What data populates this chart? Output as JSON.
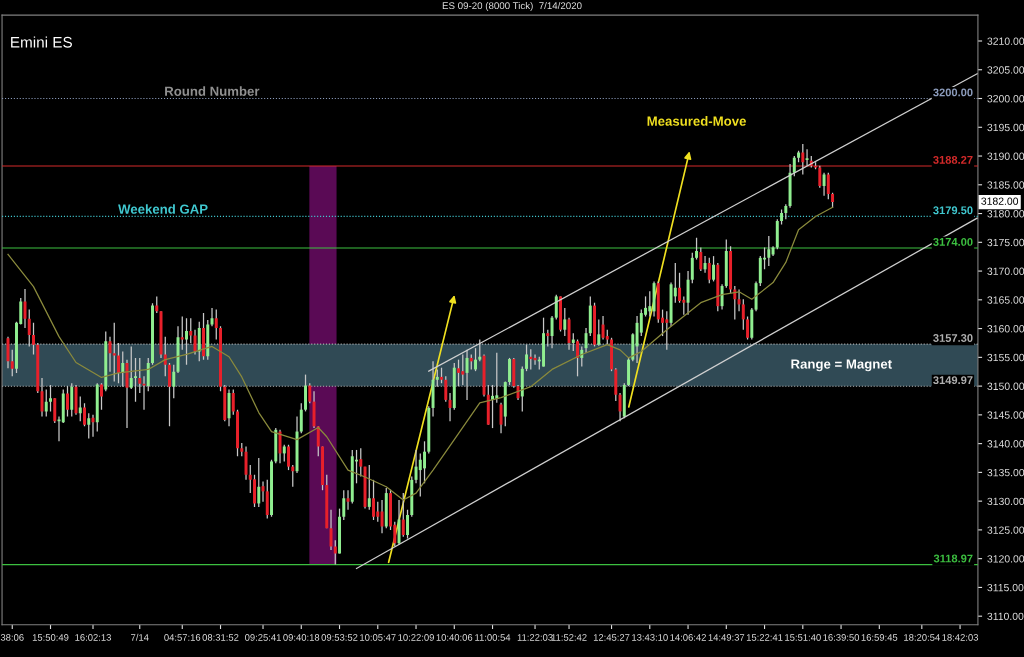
{
  "chart_data": {
    "type": "candlestick",
    "title": "ES 09-20 (8000 Tick)  7/14/2020",
    "subtitle": "Emini ES",
    "categories": [
      null,
      "38:06",
      null,
      null,
      null,
      null,
      null,
      null,
      null,
      null,
      "15:50:49",
      null,
      null,
      null,
      null,
      null,
      null,
      null,
      null,
      null,
      "16:02:13",
      null,
      null,
      null,
      null,
      null,
      null,
      null,
      null,
      null,
      null,
      "7/14",
      null,
      null,
      null,
      null,
      null,
      null,
      null,
      null,
      null,
      "04:57:16",
      null,
      null,
      null,
      null,
      null,
      null,
      null,
      null,
      "08:31:52",
      null,
      null,
      null,
      null,
      null,
      null,
      null,
      null,
      null,
      "09:25:41",
      null,
      null,
      null,
      null,
      null,
      null,
      null,
      null,
      "09:40:18",
      null,
      null,
      null,
      null,
      null,
      null,
      null,
      null,
      "09:53:52",
      null,
      null,
      null,
      null,
      null,
      null,
      null,
      null,
      "10:05:47",
      null,
      null,
      null,
      null,
      null,
      null,
      null,
      null,
      "10:22:09",
      null,
      null,
      null,
      null,
      null,
      null,
      null,
      null,
      "10:40:06",
      null,
      null,
      null,
      null,
      null,
      null,
      null,
      null,
      "11:00:54",
      null,
      null,
      null,
      null,
      null,
      null,
      null,
      null,
      null,
      "11:22:03",
      null,
      null,
      null,
      null,
      null,
      null,
      null,
      "11:52:42",
      null,
      null,
      null,
      null,
      null,
      null,
      null,
      null,
      null,
      "12:45:27",
      null,
      null,
      null,
      null,
      null,
      null,
      null,
      null,
      "13:43:10",
      null,
      null,
      null,
      null,
      null,
      null,
      null,
      null,
      "14:06:42",
      null,
      null,
      null,
      null,
      null,
      null,
      null,
      null,
      "14:49:37",
      null,
      null,
      null,
      null,
      null,
      null,
      null,
      null,
      "15:22:41",
      null,
      null,
      null,
      null,
      null,
      null,
      null,
      null,
      "15:51:40",
      null,
      null,
      null,
      null,
      null,
      null,
      null,
      null,
      "16:39:50",
      null,
      null,
      null,
      null,
      null,
      null,
      null,
      null,
      "16:59:45",
      null,
      null,
      null,
      null,
      null,
      null,
      null,
      null,
      null,
      "18:20:54",
      null,
      null,
      null,
      null,
      null,
      null,
      null,
      null,
      "18:42:03",
      null,
      null,
      null,
      null
    ],
    "colors": [
      "#e8202a",
      "#e8202a",
      "#90ee90",
      "#90ee90",
      "#e8202a",
      "#e8202a",
      "#e8202a",
      "#e8202a",
      "#e8202a",
      "#90ee90",
      "#90ee90",
      "#e8202a",
      "#90ee90",
      "#90ee90",
      "#e8202a",
      "#90ee90",
      "#e8202a",
      "#90ee90",
      "#e8202a",
      "#90ee90",
      "#e8202a",
      "#90ee90",
      "#e8202a",
      "#90ee90",
      "#e8202a",
      "#e8202a",
      "#e8202a",
      "#90ee90",
      "#e8202a",
      "#90ee90",
      "#90ee90",
      "#e8202a",
      "#e8202a",
      "#90ee90",
      "#90ee90",
      "#e8202a",
      "#e8202a",
      "#e8202a",
      "#e8202a",
      "#90ee90",
      "#90ee90",
      "#e8202a",
      "#90ee90",
      "#e8202a",
      "#e8202a",
      "#90ee90",
      "#e8202a",
      "#90ee90",
      "#90ee90",
      "#e8202a",
      "#e8202a",
      "#e8202a",
      "#90ee90",
      "#e8202a",
      "#e8202a",
      "#e8202a",
      "#e8202a",
      "#e8202a",
      "#e8202a",
      "#90ee90",
      "#e8202a",
      "#e8202a",
      "#90ee90",
      "#90ee90",
      "#e8202a",
      "#90ee90",
      "#e8202a",
      "#e8202a",
      "#90ee90",
      "#90ee90",
      "#90ee90",
      "#e8202a",
      "#e8202a",
      "#e8202a",
      "#e8202a",
      "#e8202a",
      "#e8202a",
      "#e8202a",
      "#90ee90",
      "#90ee90",
      "#e8202a",
      "#90ee90",
      "#90ee90",
      "#e8202a",
      "#e8202a",
      "#90ee90",
      "#e8202a",
      "#e8202a",
      "#e8202a",
      "#90ee90",
      "#e8202a",
      "#e8202a",
      "#90ee90",
      "#e8202a",
      "#90ee90",
      "#90ee90",
      "#90ee90",
      "#90ee90",
      "#90ee90",
      "#90ee90",
      "#90ee90",
      "#90ee90",
      "#e8202a",
      "#e8202a",
      "#e8202a",
      "#90ee90",
      "#e8202a",
      "#e8202a",
      "#90ee90",
      "#e8202a",
      "#90ee90",
      "#90ee90",
      "#e8202a",
      "#e8202a",
      "#90ee90",
      "#90ee90",
      "#e8202a",
      "#90ee90",
      "#90ee90",
      "#e8202a",
      "#e8202a",
      "#90ee90",
      "#90ee90",
      "#e8202a",
      "#e8202a",
      "#90ee90",
      "#90ee90",
      "#e8202a",
      "#90ee90",
      "#90ee90",
      "#e8202a",
      "#90ee90",
      "#e8202a",
      "#90ee90",
      "#e8202a",
      "#90ee90",
      "#90ee90",
      "#90ee90",
      "#e8202a",
      "#90ee90",
      "#e8202a",
      "#e8202a",
      "#e8202a",
      "#e8202a",
      "#e8202a",
      "#90ee90",
      "#90ee90",
      "#90ee90",
      "#90ee90",
      "#90ee90",
      "#90ee90",
      "#90ee90",
      "#90ee90",
      "#e8202a",
      "#e8202a",
      "#e8202a",
      "#90ee90",
      "#90ee90",
      "#e8202a",
      "#e8202a",
      "#90ee90",
      "#90ee90",
      "#90ee90",
      "#e8202a",
      "#90ee90",
      "#e8202a",
      "#90ee90",
      "#e8202a",
      "#90ee90",
      "#90ee90",
      "#e8202a",
      "#e8202a",
      "#e8202a",
      "#e8202a",
      "#e8202a",
      "#90ee90",
      "#90ee90",
      "#90ee90",
      "#90ee90",
      "#90ee90",
      "#90ee90",
      "#90ee90",
      "#90ee90",
      "#90ee90",
      "#90ee90",
      "#90ee90",
      "#90ee90",
      "#e8202a",
      "#90ee90",
      "#e8202a",
      "#e8202a",
      "#e8202a",
      "#90ee90",
      "#e8202a",
      "#e8202a",
      null,
      null,
      null,
      null,
      null,
      null,
      null,
      null,
      null,
      null,
      null,
      null,
      null,
      null,
      null,
      null,
      null,
      null,
      null,
      null,
      null,
      null,
      null,
      null,
      null,
      null,
      null,
      null,
      null,
      null,
      null,
      null,
      null,
      null
    ],
    "ohlc": [
      [
        3158.3,
        3158.6,
        3153.1,
        3154.3
      ],
      [
        3154.3,
        3156.3,
        3151.7,
        3153.0
      ],
      [
        3153.0,
        3161.2,
        3152.3,
        3161.0
      ],
      [
        3160.8,
        3165.3,
        3160.7,
        3164.7
      ],
      [
        3164.7,
        3166.9,
        3160.1,
        3161.7
      ],
      [
        3161.7,
        3163.3,
        3156.9,
        3158.9
      ],
      [
        3158.9,
        3161.0,
        3155.5,
        3157.2
      ],
      [
        3157.2,
        3157.5,
        3148.8,
        3149.1
      ],
      [
        3149.1,
        3151.4,
        3144.7,
        3145.6
      ],
      [
        3145.6,
        3149.4,
        3144.7,
        3147.3
      ],
      [
        3147.3,
        3150.2,
        3145.6,
        3147.9
      ],
      [
        3147.9,
        3147.9,
        3143.6,
        3143.9
      ],
      [
        3143.9,
        3144.7,
        3140.4,
        3144.2
      ],
      [
        3143.7,
        3149.4,
        3143.6,
        3148.7
      ],
      [
        3148.7,
        3150.0,
        3144.7,
        3145.9
      ],
      [
        3145.9,
        3150.5,
        3144.7,
        3149.9
      ],
      [
        3149.9,
        3150.2,
        3145.0,
        3145.3
      ],
      [
        3145.3,
        3148.2,
        3143.9,
        3146.3
      ],
      [
        3146.3,
        3147.0,
        3143.0,
        3143.3
      ],
      [
        3143.3,
        3145.3,
        3140.9,
        3144.4
      ],
      [
        3144.5,
        3145.0,
        3141.2,
        3143.7
      ],
      [
        3143.7,
        3150.5,
        3142.1,
        3150.3
      ],
      [
        3150.3,
        3150.5,
        3145.9,
        3148.2
      ],
      [
        3149.4,
        3159.5,
        3149.1,
        3157.8
      ],
      [
        3157.8,
        3158.6,
        3152.5,
        3155.7
      ],
      [
        3155.7,
        3161.0,
        3150.8,
        3155.3
      ],
      [
        3155.3,
        3157.5,
        3150.5,
        3152.3
      ],
      [
        3152.3,
        3156.0,
        3149.9,
        3154.0
      ],
      [
        3154.0,
        3154.6,
        3142.7,
        3149.7
      ],
      [
        3149.7,
        3156.9,
        3149.5,
        3151.4
      ],
      [
        3151.4,
        3154.9,
        3147.3,
        3151.7
      ],
      [
        3151.4,
        3154.9,
        3148.8,
        3150.4
      ],
      [
        3150.4,
        3151.7,
        3145.9,
        3150.1
      ],
      [
        3150.0,
        3154.9,
        3149.1,
        3154.0
      ],
      [
        3154.0,
        3164.4,
        3153.7,
        3164.0
      ],
      [
        3164.0,
        3165.6,
        3162.7,
        3163.0
      ],
      [
        3163.0,
        3163.0,
        3154.9,
        3155.5
      ],
      [
        3155.5,
        3158.6,
        3151.7,
        3153.7
      ],
      [
        3153.7,
        3154.0,
        3143.0,
        3149.9
      ],
      [
        3149.9,
        3153.7,
        3147.9,
        3152.5
      ],
      [
        3152.5,
        3160.4,
        3152.3,
        3158.5
      ],
      [
        3158.5,
        3162.1,
        3156.3,
        3158.1
      ],
      [
        3158.1,
        3161.8,
        3153.7,
        3159.6
      ],
      [
        3159.6,
        3161.8,
        3157.5,
        3158.8
      ],
      [
        3158.8,
        3159.8,
        3155.5,
        3156.0
      ],
      [
        3156.0,
        3161.2,
        3154.3,
        3160.1
      ],
      [
        3160.1,
        3162.7,
        3154.6,
        3155.2
      ],
      [
        3155.2,
        3161.5,
        3154.6,
        3160.7
      ],
      [
        3160.7,
        3163.6,
        3160.4,
        3161.8
      ],
      [
        3161.8,
        3163.3,
        3158.1,
        3160.1
      ],
      [
        3160.1,
        3160.4,
        3149.1,
        3149.9
      ],
      [
        3149.9,
        3150.2,
        3143.9,
        3144.1
      ],
      [
        3144.4,
        3149.4,
        3143.0,
        3148.8
      ],
      [
        3148.8,
        3149.4,
        3145.0,
        3145.6
      ],
      [
        3145.6,
        3145.9,
        3137.8,
        3139.2
      ],
      [
        3139.2,
        3140.1,
        3137.8,
        3138.6
      ],
      [
        3138.6,
        3139.5,
        3133.7,
        3134.6
      ],
      [
        3134.6,
        3136.3,
        3131.4,
        3133.7
      ],
      [
        3133.8,
        3134.6,
        3129.0,
        3129.6
      ],
      [
        3129.6,
        3137.5,
        3129.0,
        3132.5
      ],
      [
        3132.6,
        3133.4,
        3129.9,
        3131.7
      ],
      [
        3131.7,
        3133.7,
        3127.0,
        3127.6
      ],
      [
        3127.6,
        3137.2,
        3127.3,
        3136.9
      ],
      [
        3136.9,
        3142.7,
        3136.6,
        3142.4
      ],
      [
        3142.1,
        3142.4,
        3136.6,
        3138.3
      ],
      [
        3138.3,
        3139.8,
        3136.9,
        3139.5
      ],
      [
        3139.5,
        3139.8,
        3135.4,
        3136.0
      ],
      [
        3136.0,
        3136.3,
        3132.5,
        3135.2
      ],
      [
        3135.2,
        3144.7,
        3134.9,
        3142.1
      ],
      [
        3142.1,
        3147.0,
        3141.8,
        3145.9
      ],
      [
        3145.9,
        3152.0,
        3145.6,
        3150.1
      ],
      [
        3150.1,
        3150.5,
        3147.0,
        3147.3
      ],
      [
        3147.3,
        3149.1,
        3142.7,
        3143.0
      ],
      [
        3143.0,
        3143.0,
        3137.8,
        3139.5
      ],
      [
        3139.5,
        3139.5,
        3131.9,
        3132.8
      ],
      [
        3132.8,
        3134.6,
        3125.3,
        3125.3
      ],
      [
        3125.3,
        3128.5,
        3121.5,
        3122.1
      ],
      [
        3122.1,
        3123.2,
        3119.0,
        3120.9
      ],
      [
        3120.9,
        3128.7,
        3120.9,
        3127.3
      ],
      [
        3127.3,
        3131.9,
        3126.7,
        3130.5
      ],
      [
        3130.5,
        3131.9,
        3128.5,
        3129.9
      ],
      [
        3129.9,
        3138.9,
        3129.6,
        3137.8
      ],
      [
        3136.9,
        3138.9,
        3133.1,
        3137.2
      ],
      [
        3137.3,
        3139.2,
        3134.3,
        3136.0
      ],
      [
        3136.0,
        3136.0,
        3128.7,
        3129.0
      ],
      [
        3129.0,
        3136.3,
        3128.5,
        3130.5
      ],
      [
        3130.5,
        3133.7,
        3126.7,
        3127.3
      ],
      [
        3128.2,
        3129.9,
        3126.4,
        3127.3
      ],
      [
        3128.2,
        3130.2,
        3124.4,
        3125.6
      ],
      [
        3125.6,
        3132.3,
        3125.3,
        3131.4
      ],
      [
        3131.4,
        3132.0,
        3125.0,
        3125.6
      ],
      [
        3125.9,
        3126.4,
        3122.1,
        3122.7
      ],
      [
        3122.7,
        3130.2,
        3122.4,
        3126.8
      ],
      [
        3126.8,
        3131.4,
        3123.8,
        3124.1
      ],
      [
        3124.1,
        3128.5,
        3123.5,
        3127.6
      ],
      [
        3127.6,
        3134.3,
        3127.3,
        3133.7
      ],
      [
        3133.7,
        3138.9,
        3133.1,
        3136.0
      ],
      [
        3135.4,
        3138.3,
        3130.8,
        3137.2
      ],
      [
        3135.7,
        3140.4,
        3133.1,
        3138.6
      ],
      [
        3138.6,
        3146.5,
        3138.3,
        3146.2
      ],
      [
        3146.2,
        3154.3,
        3144.7,
        3151.1
      ],
      [
        3151.1,
        3152.9,
        3149.9,
        3151.6
      ],
      [
        3151.6,
        3153.2,
        3150.5,
        3151.1
      ],
      [
        3151.1,
        3151.7,
        3147.3,
        3147.6
      ],
      [
        3147.6,
        3148.8,
        3143.9,
        3146.2
      ],
      [
        3146.2,
        3154.0,
        3145.9,
        3153.2
      ],
      [
        3153.1,
        3154.6,
        3150.0,
        3152.3
      ],
      [
        3152.6,
        3155.5,
        3150.2,
        3152.0
      ],
      [
        3152.3,
        3156.3,
        3147.6,
        3154.9
      ],
      [
        3154.9,
        3155.5,
        3152.9,
        3154.3
      ],
      [
        3152.9,
        3156.6,
        3152.6,
        3154.6
      ],
      [
        3154.6,
        3158.1,
        3154.3,
        3155.1
      ],
      [
        3155.3,
        3155.5,
        3148.2,
        3148.5
      ],
      [
        3148.5,
        3150.2,
        3143.3,
        3143.3
      ],
      [
        3147.6,
        3150.2,
        3142.7,
        3148.3
      ],
      [
        3147.8,
        3155.8,
        3147.1,
        3148.4
      ],
      [
        3146.8,
        3147.1,
        3141.8,
        3143.3
      ],
      [
        3144.7,
        3150.8,
        3143.0,
        3150.7
      ],
      [
        3150.7,
        3154.9,
        3150.2,
        3154.7
      ],
      [
        3154.7,
        3154.9,
        3149.7,
        3150.0
      ],
      [
        3150.0,
        3150.2,
        3147.6,
        3147.9
      ],
      [
        3148.2,
        3153.4,
        3145.6,
        3153.0
      ],
      [
        3153.0,
        3157.2,
        3152.6,
        3155.5
      ],
      [
        3155.1,
        3156.4,
        3152.9,
        3154.7
      ],
      [
        3154.9,
        3155.5,
        3153.7,
        3154.5
      ],
      [
        3154.3,
        3155.1,
        3152.9,
        3154.6
      ],
      [
        3153.4,
        3161.9,
        3153.4,
        3159.2
      ],
      [
        3159.2,
        3159.8,
        3156.9,
        3158.7
      ],
      [
        3158.7,
        3162.2,
        3156.6,
        3161.9
      ],
      [
        3161.9,
        3165.9,
        3161.6,
        3165.6
      ],
      [
        3165.6,
        3165.6,
        3159.5,
        3159.8
      ],
      [
        3159.8,
        3163.6,
        3158.7,
        3161.6
      ],
      [
        3161.6,
        3161.9,
        3156.3,
        3157.5
      ],
      [
        3157.5,
        3159.2,
        3156.1,
        3158.1
      ],
      [
        3157.8,
        3158.1,
        3151.7,
        3154.9
      ],
      [
        3154.9,
        3156.9,
        3153.4,
        3156.3
      ],
      [
        3156.6,
        3160.1,
        3155.8,
        3159.2
      ],
      [
        3159.2,
        3165.6,
        3158.7,
        3164.0
      ],
      [
        3164.0,
        3164.5,
        3156.9,
        3157.2
      ],
      [
        3157.2,
        3161.6,
        3157.0,
        3159.0
      ],
      [
        3160.7,
        3162.2,
        3158.1,
        3158.4
      ],
      [
        3158.7,
        3159.8,
        3157.2,
        3158.1
      ],
      [
        3158.1,
        3158.4,
        3152.6,
        3152.9
      ],
      [
        3152.9,
        3153.1,
        3147.4,
        3148.5
      ],
      [
        3148.5,
        3148.8,
        3143.9,
        3145.6
      ],
      [
        3144.7,
        3150.5,
        3144.4,
        3150.2
      ],
      [
        3150.2,
        3154.9,
        3150.0,
        3154.6
      ],
      [
        3154.6,
        3159.2,
        3154.3,
        3159.0
      ],
      [
        3156.9,
        3162.2,
        3154.0,
        3161.0
      ],
      [
        3159.3,
        3163.3,
        3158.7,
        3162.7
      ],
      [
        3162.4,
        3165.6,
        3162.1,
        3163.6
      ],
      [
        3163.0,
        3166.5,
        3162.1,
        3163.9
      ],
      [
        3163.0,
        3168.2,
        3162.1,
        3167.9
      ],
      [
        3167.9,
        3168.2,
        3161.0,
        3161.6
      ],
      [
        3161.9,
        3163.3,
        3158.7,
        3161.0
      ],
      [
        3161.6,
        3163.0,
        3156.3,
        3161.0
      ],
      [
        3161.0,
        3168.0,
        3160.4,
        3167.7
      ],
      [
        3165.6,
        3171.4,
        3164.5,
        3167.1
      ],
      [
        3167.1,
        3169.7,
        3164.5,
        3164.8
      ],
      [
        3165.0,
        3165.6,
        3162.4,
        3164.5
      ],
      [
        3164.5,
        3170.0,
        3162.4,
        3168.5
      ],
      [
        3168.5,
        3173.2,
        3167.9,
        3172.3
      ],
      [
        3172.3,
        3175.8,
        3172.0,
        3173.5
      ],
      [
        3173.3,
        3174.1,
        3170.0,
        3170.3
      ],
      [
        3170.3,
        3172.6,
        3169.7,
        3171.4
      ],
      [
        3171.4,
        3172.3,
        3167.9,
        3168.5
      ],
      [
        3168.5,
        3172.6,
        3168.2,
        3171.1
      ],
      [
        3171.1,
        3171.4,
        3163.0,
        3163.9
      ],
      [
        3163.9,
        3167.7,
        3163.3,
        3167.4
      ],
      [
        3167.4,
        3175.5,
        3167.1,
        3173.5
      ],
      [
        3173.5,
        3174.3,
        3166.2,
        3166.8
      ],
      [
        3166.8,
        3167.4,
        3161.6,
        3165.1
      ],
      [
        3165.1,
        3166.8,
        3163.0,
        3164.2
      ],
      [
        3164.2,
        3165.1,
        3159.8,
        3161.6
      ],
      [
        3161.6,
        3162.1,
        3158.1,
        3158.4
      ],
      [
        3158.4,
        3163.6,
        3158.1,
        3163.3
      ],
      [
        3163.3,
        3168.2,
        3163.0,
        3167.9
      ],
      [
        3167.9,
        3172.6,
        3167.4,
        3172.3
      ],
      [
        3172.0,
        3174.1,
        3170.3,
        3172.3
      ],
      [
        3172.3,
        3176.1,
        3170.9,
        3173.8
      ],
      [
        3172.9,
        3174.3,
        3172.6,
        3174.1
      ],
      [
        3174.1,
        3179.0,
        3173.8,
        3178.7
      ],
      [
        3178.7,
        3180.7,
        3178.1,
        3180.1
      ],
      [
        3180.1,
        3181.6,
        3179.0,
        3181.3
      ],
      [
        3181.3,
        3188.6,
        3181.0,
        3187.1
      ],
      [
        3187.1,
        3190.0,
        3186.5,
        3189.7
      ],
      [
        3189.7,
        3190.9,
        3188.9,
        3190.6
      ],
      [
        3190.6,
        3192.1,
        3186.8,
        3188.9
      ],
      [
        3189.3,
        3191.2,
        3188.3,
        3189.6
      ],
      [
        3189.2,
        3190.0,
        3188.0,
        3188.3
      ],
      [
        3188.3,
        3188.9,
        3187.7,
        3188.0
      ],
      [
        3188.0,
        3188.3,
        3184.5,
        3184.8
      ],
      [
        3184.8,
        3187.1,
        3183.1,
        3186.8
      ],
      [
        3186.8,
        3187.1,
        3182.5,
        3183.4
      ],
      [
        3183.4,
        3183.6,
        3181.0,
        3182.0
      ],
      null,
      null,
      null,
      null,
      null,
      null,
      null,
      null,
      null,
      null,
      null,
      null,
      null,
      null,
      null,
      null,
      null,
      null,
      null,
      null,
      null,
      null,
      null,
      null,
      null,
      null,
      null,
      null,
      null,
      null,
      null,
      null,
      null,
      null
    ],
    "series": [
      {
        "type": "line",
        "color": "#8a8a3c",
        "values": [
          3172.9,
          null,
          null,
          null,
          null,
          null,
          3167.3,
          null,
          null,
          null,
          null,
          null,
          3158.6,
          null,
          null,
          null,
          3154.1,
          null,
          null,
          null,
          null,
          null,
          3151.5,
          null,
          null,
          null,
          3152.3,
          null,
          null,
          null,
          null,
          null,
          null,
          3152.9,
          null,
          null,
          null,
          3154.6,
          null,
          null,
          null,
          null,
          3155.5,
          null,
          null,
          null,
          null,
          null,
          3156.9,
          null,
          null,
          null,
          3155.1,
          null,
          null,
          3151.6,
          null,
          null,
          null,
          3145.4,
          null,
          null,
          3142.1,
          null,
          null,
          null,
          null,
          null,
          3140.7,
          null,
          null,
          null,
          null,
          3142.8,
          null,
          3141.2,
          null,
          null,
          null,
          null,
          3135.4,
          null,
          null,
          null,
          3134.2,
          null,
          null,
          null,
          null,
          3132.5,
          null,
          null,
          null,
          3130.2,
          null,
          null,
          3131.4,
          null,
          null,
          null,
          3135.4,
          null,
          null,
          null,
          null,
          3140.7,
          null,
          null,
          null,
          null,
          null,
          3147.1,
          null,
          null,
          null,
          null,
          3148.0,
          null,
          null,
          null,
          null,
          null,
          null,
          3149.9,
          null,
          null,
          null,
          null,
          3152.9,
          null,
          null,
          null,
          null,
          null,
          null,
          3155.5,
          null,
          null,
          null,
          null,
          null,
          3157.2,
          null,
          null,
          3156.3,
          null,
          3154.9,
          null,
          null,
          3156.0,
          null,
          null,
          null,
          null,
          null,
          3159.8,
          null,
          null,
          null,
          null,
          null,
          null,
          null,
          3164.5,
          null,
          null,
          null,
          null,
          3165.9,
          null,
          null,
          null,
          3166.4,
          null,
          null,
          3165.1,
          null,
          null,
          null,
          null,
          3168.0,
          null,
          null,
          3171.5,
          null,
          null,
          3177.2,
          null,
          null,
          null,
          3179.5,
          null,
          null,
          null,
          3181.1,
          null,
          null,
          null,
          null,
          null,
          null,
          null,
          null,
          null,
          null,
          null,
          null,
          null,
          null,
          null,
          null,
          null,
          null,
          null,
          null,
          null,
          null,
          null,
          null,
          null,
          null,
          null,
          null,
          null,
          null,
          null,
          null,
          null,
          null
        ]
      },
      {
        "type": "line",
        "color": "#d0d0d0",
        "values": [
          null,
          null,
          null,
          null,
          null,
          null,
          null,
          null,
          null,
          null,
          null,
          null,
          null,
          null,
          null,
          null,
          null,
          null,
          null,
          null,
          null,
          null,
          null,
          null,
          null,
          null,
          null,
          null,
          null,
          null,
          null,
          null,
          null,
          null,
          null,
          null,
          null,
          null,
          null,
          null,
          null,
          null,
          null,
          null,
          null,
          null,
          null,
          null,
          null,
          null,
          null,
          null,
          null,
          null,
          null,
          null,
          null,
          null,
          null,
          null,
          null,
          null,
          null,
          null,
          null,
          null,
          null,
          null,
          null,
          null,
          null,
          null,
          null,
          null,
          null,
          null,
          null,
          null,
          null,
          null,
          null,
          null,
          null,
          null,
          null,
          null,
          null,
          null,
          null,
          null,
          null,
          null,
          null,
          null,
          null,
          null,
          null,
          null,
          null,
          3152.6,
          null,
          null,
          null,
          null,
          null,
          null,
          null,
          null,
          null,
          null,
          null,
          null,
          null,
          null,
          null,
          null,
          null,
          null,
          null,
          null,
          null,
          null,
          null,
          null,
          null,
          null,
          null,
          null,
          null,
          null,
          null,
          null,
          null,
          null,
          null,
          null,
          null,
          null,
          null,
          null,
          null,
          null,
          null,
          null,
          null,
          null,
          null,
          null,
          null,
          null,
          null,
          null,
          null,
          null,
          null,
          null,
          null,
          null,
          null,
          null,
          null,
          null,
          null,
          null,
          null,
          null,
          null,
          null,
          null,
          null,
          null,
          null,
          null,
          null,
          null,
          null,
          null,
          null,
          null,
          null,
          null,
          null,
          null,
          null,
          null,
          null,
          null,
          null,
          null,
          null,
          null,
          null,
          null,
          null,
          null,
          null,
          null,
          null,
          null,
          null,
          null,
          null,
          null,
          null,
          null,
          null,
          null,
          null,
          null,
          null,
          null,
          null,
          null,
          null,
          null,
          null,
          null,
          null,
          null,
          null,
          null,
          null,
          null,
          null,
          null,
          null,
          null,
          null,
          3204.3
        ]
      },
      {
        "type": "line",
        "color": "#d0d0d0",
        "values": [
          null,
          null,
          null,
          null,
          null,
          null,
          null,
          null,
          null,
          null,
          null,
          null,
          null,
          null,
          null,
          null,
          null,
          null,
          null,
          null,
          null,
          null,
          null,
          null,
          null,
          null,
          null,
          null,
          null,
          null,
          null,
          null,
          null,
          null,
          null,
          null,
          null,
          null,
          null,
          null,
          null,
          null,
          null,
          null,
          null,
          null,
          null,
          null,
          null,
          null,
          null,
          null,
          null,
          null,
          null,
          null,
          null,
          null,
          null,
          null,
          null,
          null,
          null,
          null,
          null,
          null,
          null,
          null,
          null,
          null,
          null,
          null,
          null,
          null,
          null,
          null,
          null,
          null,
          null,
          null,
          null,
          null,
          3118.3,
          null,
          null,
          null,
          null,
          null,
          null,
          null,
          null,
          null,
          null,
          null,
          null,
          null,
          null,
          null,
          null,
          null,
          null,
          null,
          null,
          null,
          null,
          null,
          null,
          null,
          null,
          null,
          null,
          null,
          null,
          null,
          null,
          null,
          null,
          null,
          null,
          null,
          null,
          null,
          null,
          null,
          null,
          null,
          null,
          null,
          null,
          null,
          null,
          null,
          null,
          null,
          null,
          null,
          null,
          null,
          null,
          null,
          null,
          null,
          null,
          null,
          null,
          null,
          null,
          null,
          null,
          null,
          null,
          null,
          null,
          null,
          null,
          null,
          null,
          null,
          null,
          null,
          null,
          null,
          null,
          null,
          null,
          null,
          null,
          null,
          null,
          null,
          null,
          null,
          null,
          null,
          null,
          null,
          null,
          null,
          null,
          null,
          null,
          null,
          null,
          null,
          null,
          null,
          null,
          null,
          null,
          null,
          null,
          null,
          null,
          null,
          null,
          null,
          null,
          null,
          null,
          null,
          null,
          null,
          null,
          null,
          null,
          null,
          null,
          null,
          null,
          null,
          null,
          null,
          null,
          null,
          null,
          null,
          null,
          null,
          null,
          null,
          null,
          null,
          null,
          null,
          null,
          null,
          null,
          null,
          3179.2
        ]
      }
    ],
    "ylim": [
      3108.5,
      3214.5
    ],
    "yticks": [
      {
        "value": 3110,
        "label": "3110.00"
      },
      {
        "value": 3115,
        "label": "3115.00"
      },
      {
        "value": 3120,
        "label": "3120.00"
      },
      {
        "value": 3125,
        "label": "3125.00"
      },
      {
        "value": 3130,
        "label": "3130.00"
      },
      {
        "value": 3135,
        "label": "3135.00"
      },
      {
        "value": 3140,
        "label": "3140.00"
      },
      {
        "value": 3145,
        "label": "3145.00"
      },
      {
        "value": 3150,
        "label": "3150.00"
      },
      {
        "value": 3155,
        "label": "3155.00"
      },
      {
        "value": 3160,
        "label": "3160.00"
      },
      {
        "value": 3165,
        "label": "3165.00"
      },
      {
        "value": 3170,
        "label": "3170.00"
      },
      {
        "value": 3175,
        "label": "3175.00"
      },
      {
        "value": 3180,
        "label": "3180.00"
      },
      {
        "value": 3185,
        "label": "3185.00"
      },
      {
        "value": 3190,
        "label": "3190.00"
      },
      {
        "value": 3195,
        "label": "3195.00"
      },
      {
        "value": 3200,
        "label": "3200.00"
      },
      {
        "value": 3205,
        "label": "3205.00"
      },
      {
        "value": 3210,
        "label": "3210.00"
      }
    ],
    "ref_lines": [
      {
        "axis": "y",
        "value": 3200.0,
        "label": "3200.00",
        "color": "#8c9cbc",
        "line_style": "dotted"
      },
      {
        "axis": "y",
        "value": 3188.27,
        "label": "3188.27",
        "color": "#d42a2a",
        "line_style": "solid"
      },
      {
        "axis": "y",
        "value": 3179.5,
        "label": "3179.50",
        "color": "#40c8d0",
        "line_style": "dotted"
      },
      {
        "axis": "y",
        "value": 3174.0,
        "label": "3174.00",
        "color": "#3cc040",
        "line_style": "solid"
      },
      {
        "axis": "y",
        "value": 3157.3,
        "label": "3157.30",
        "color": "#b0b0b0",
        "line_style": "dotted"
      },
      {
        "axis": "y",
        "value": 3149.97,
        "label": "3149.97",
        "color": "#b0b0b0",
        "line_style": "dotted"
      },
      {
        "axis": "y",
        "value": 3118.97,
        "label": "3118.97",
        "color": "#3cc040",
        "line_style": "solid"
      }
    ],
    "bands": [
      {
        "axis": "y",
        "from": 3149.97,
        "to": 3157.3,
        "label": "Range = Magnet",
        "color": "#304a55"
      }
    ],
    "annotations": [
      {
        "text": "Round Number",
        "y": 3200
      },
      {
        "text": "Weekend GAP",
        "y": 3179.5
      },
      "Measured-Move",
      {
        "text": "3182.00",
        "y": 3182
      }
    ],
    "grid": false,
    "legend": false
  }
}
